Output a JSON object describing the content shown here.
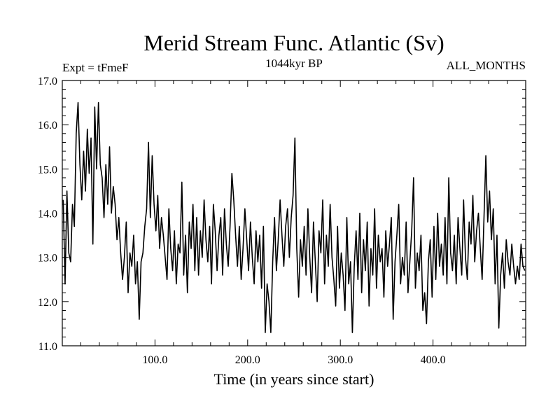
{
  "chart_data": {
    "type": "line",
    "title": "Merid Stream Func. Atlantic (Sv)",
    "subtitle_left": "Expt = tFmeF",
    "subtitle_center": "1044kyr BP",
    "subtitle_right": "ALL_MONTHS",
    "xlabel": "Time (in years since start)",
    "ylabel": "",
    "xlim": [
      0,
      500
    ],
    "ylim": [
      11.0,
      17.0
    ],
    "x_ticks": [
      100,
      200,
      300,
      400
    ],
    "x_tick_labels": [
      "100.0",
      "200.0",
      "300.0",
      "400.0"
    ],
    "y_ticks": [
      11,
      12,
      13,
      14,
      15,
      16,
      17
    ],
    "y_tick_labels": [
      "11.0",
      "12.0",
      "13.0",
      "14.0",
      "15.0",
      "16.0",
      "17.0"
    ],
    "line_color": "#000000",
    "grid": false,
    "series": [
      {
        "name": "Merid Stream Func. Atlantic",
        "x_start": 1,
        "x_step": 2,
        "values": [
          14.3,
          12.4,
          14.5,
          13.1,
          12.9,
          14.2,
          13.7,
          15.8,
          16.5,
          15.1,
          14.3,
          15.4,
          14.5,
          15.9,
          14.9,
          15.7,
          13.3,
          16.4,
          15.0,
          16.5,
          15.1,
          14.8,
          13.9,
          15.1,
          14.2,
          15.5,
          14.0,
          14.6,
          14.2,
          13.4,
          13.9,
          13.1,
          12.5,
          13.0,
          13.8,
          12.2,
          13.1,
          12.8,
          13.5,
          12.4,
          12.9,
          11.6,
          12.9,
          13.1,
          13.7,
          14.1,
          15.6,
          13.9,
          15.3,
          14.2,
          13.6,
          14.4,
          13.2,
          13.9,
          13.5,
          13.0,
          12.5,
          14.1,
          13.2,
          12.7,
          13.6,
          12.4,
          13.3,
          13.1,
          14.7,
          12.6,
          13.5,
          12.2,
          13.8,
          13.2,
          14.2,
          12.7,
          13.9,
          12.6,
          13.6,
          13.0,
          14.3,
          13.4,
          12.9,
          13.7,
          12.4,
          14.2,
          13.6,
          12.7,
          13.5,
          13.9,
          12.6,
          14.1,
          13.3,
          12.8,
          13.7,
          14.9,
          14.3,
          13.5,
          12.8,
          13.7,
          12.5,
          13.2,
          14.1,
          13.4,
          12.7,
          13.8,
          13.0,
          12.4,
          13.6,
          12.9,
          13.5,
          12.3,
          13.7,
          11.3,
          12.4,
          12.0,
          11.3,
          12.9,
          13.9,
          12.7,
          13.4,
          14.3,
          13.5,
          12.8,
          13.7,
          14.1,
          13.0,
          13.9,
          14.4,
          15.7,
          13.2,
          12.1,
          13.4,
          12.8,
          13.7,
          12.6,
          14.1,
          13.0,
          12.2,
          13.8,
          12.9,
          12.0,
          13.6,
          13.1,
          14.3,
          12.4,
          13.5,
          12.8,
          14.2,
          13.0,
          12.5,
          11.9,
          13.7,
          12.3,
          13.1,
          12.6,
          11.8,
          13.9,
          12.4,
          12.9,
          11.3,
          12.8,
          13.6,
          12.5,
          14.0,
          12.2,
          13.4,
          12.7,
          13.8,
          11.9,
          13.2,
          12.6,
          14.1,
          12.3,
          13.5,
          12.9,
          13.2,
          12.1,
          13.6,
          12.8,
          13.3,
          13.9,
          11.6,
          12.9,
          13.5,
          14.2,
          12.4,
          13.0,
          12.6,
          13.8,
          12.2,
          12.9,
          13.6,
          14.8,
          12.3,
          13.1,
          12.7,
          13.5,
          11.8,
          12.2,
          11.5,
          12.9,
          13.4,
          12.1,
          13.7,
          12.5,
          14.0,
          12.8,
          13.3,
          12.6,
          13.9,
          12.4,
          14.8,
          13.1,
          12.7,
          13.5,
          12.4,
          13.9,
          13.2,
          12.6,
          14.3,
          13.0,
          12.5,
          13.8,
          13.3,
          14.4,
          12.9,
          13.6,
          14.0,
          13.2,
          12.5,
          13.9,
          15.3,
          13.8,
          14.5,
          13.4,
          14.1,
          12.4,
          13.5,
          11.4,
          12.6,
          13.1,
          12.3,
          13.4,
          12.9,
          12.6,
          13.3,
          12.8,
          12.4,
          12.8,
          12.5,
          13.3,
          12.8,
          12.7
        ]
      }
    ]
  }
}
